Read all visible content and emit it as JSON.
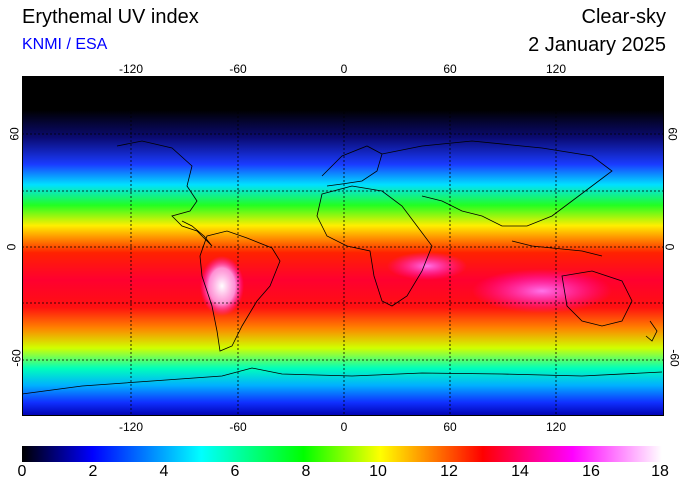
{
  "header": {
    "title": "Erythemal UV index",
    "subtitle": "KNMI / ESA",
    "title_right": "Clear-sky",
    "date": "2 January 2025"
  },
  "axes": {
    "lon_ticks": [
      "-120",
      "-60",
      "0",
      "60",
      "120"
    ],
    "lat_left": [
      "60",
      "0",
      "-60"
    ],
    "lat_right": [
      "60",
      "0",
      "-60"
    ]
  },
  "colorbar": {
    "ticks": [
      "0",
      "2",
      "4",
      "6",
      "8",
      "10",
      "12",
      "14",
      "16",
      "18"
    ]
  },
  "colors": {
    "scale": [
      "#000000",
      "#0000ff",
      "#00ffff",
      "#00ff00",
      "#ffff00",
      "#ff0000",
      "#ff00ff",
      "#ffffff"
    ]
  }
}
